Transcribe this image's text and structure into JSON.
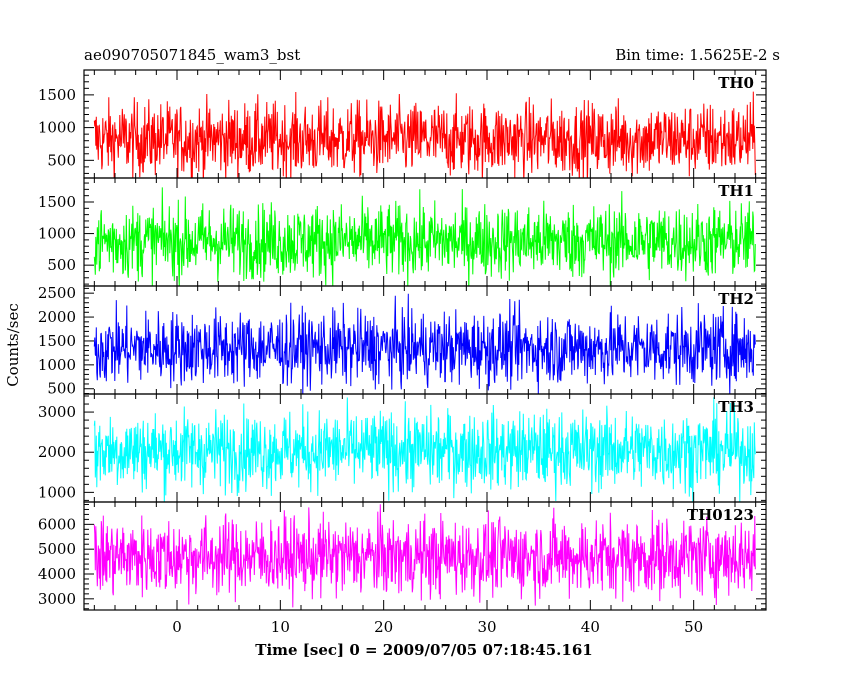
{
  "chart_data": {
    "type": "line",
    "title_left": "ae090705071845_wam3_bst",
    "title_right": "Bin time: 1.5625E-2 s",
    "xlabel": "Time [sec] 0 = 2009/07/05 07:18:45.161",
    "ylabel": "Counts/sec",
    "xlim": [
      -9,
      57
    ],
    "x_data_range": [
      -8.0,
      56.0
    ],
    "x_ticks": [
      0,
      10,
      20,
      30,
      40,
      50
    ],
    "x_tick_labels": [
      "0",
      "10",
      "20",
      "30",
      "40",
      "50"
    ],
    "panels": [
      {
        "name": "TH0",
        "color": "#ff0000",
        "ylim": [
          230,
          1880
        ],
        "y_ticks": [
          500,
          1000,
          1500
        ],
        "y_tick_labels": [
          "500",
          "1000",
          "1500"
        ],
        "mean": 820,
        "spread": 280
      },
      {
        "name": "TH1",
        "color": "#00ff00",
        "ylim": [
          170,
          1880
        ],
        "y_ticks": [
          500,
          1000,
          1500
        ],
        "y_tick_labels": [
          "500",
          "1000",
          "1500"
        ],
        "mean": 880,
        "spread": 290
      },
      {
        "name": "TH2",
        "color": "#0000ff",
        "ylim": [
          390,
          2650
        ],
        "y_ticks": [
          500,
          1000,
          1500,
          2000,
          2500
        ],
        "y_tick_labels": [
          "500",
          "1000",
          "1500",
          "2000",
          "2500"
        ],
        "mean": 1350,
        "spread": 380
      },
      {
        "name": "TH3",
        "color": "#00ffff",
        "ylim": [
          760,
          3450
        ],
        "y_ticks": [
          1000,
          2000,
          3000
        ],
        "y_tick_labels": [
          "1000",
          "2000",
          "3000"
        ],
        "mean": 2050,
        "spread": 480
      },
      {
        "name": "TH0123",
        "color": "#ff00ff",
        "ylim": [
          2550,
          6900
        ],
        "y_ticks": [
          3000,
          4000,
          5000,
          6000
        ],
        "y_tick_labels": [
          "3000",
          "4000",
          "5000",
          "6000"
        ],
        "mean": 4700,
        "spread": 780
      }
    ]
  }
}
